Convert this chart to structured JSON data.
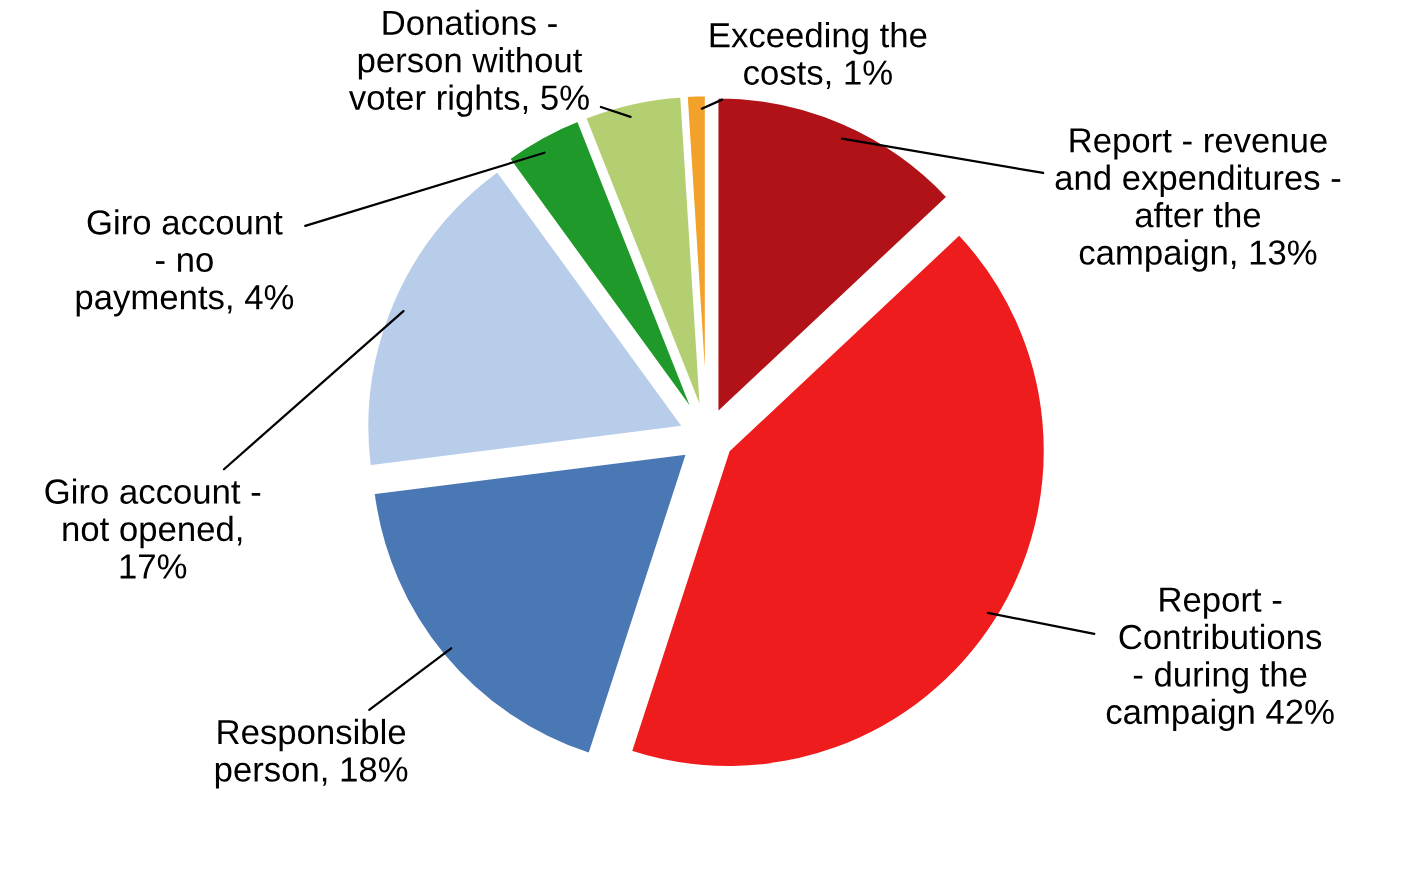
{
  "chart_data": {
    "type": "pie",
    "categories": [
      "Report - revenue and expenditures - after the campaign, 13%",
      "Report - Contributions - during the campaign 42%",
      "Responsible person, 18%",
      "Giro account - not opened, 17%",
      "Giro account - no payments, 4%",
      "Donations - person without voter rights, 5%",
      "Exceeding the costs, 1%"
    ],
    "values": [
      13,
      42,
      18,
      17,
      4,
      5,
      1
    ],
    "colors": [
      "#b01217",
      "#ee1c1c",
      "#4a78b5",
      "#b8cde9",
      "#1f9a2a",
      "#b3cf72",
      "#f2a22a"
    ],
    "legend": false
  }
}
